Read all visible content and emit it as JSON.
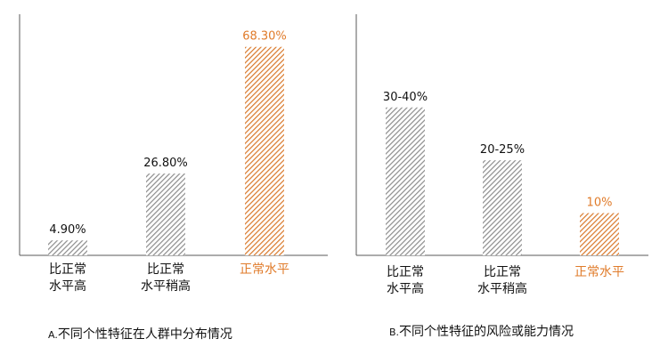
{
  "colors": {
    "gray": "#8c8c8c",
    "orange": "#d9782a",
    "text": "#111111",
    "highlight_text": "#e07b2a"
  },
  "chart_data": [
    {
      "type": "bar",
      "categories": [
        [
          "比正常",
          "水平高"
        ],
        [
          "比正常",
          "水平稍高"
        ],
        [
          "正常水平"
        ]
      ],
      "values": [
        4.9,
        26.8,
        68.3
      ],
      "value_labels": [
        "4.90%",
        "26.80%",
        "68.30%"
      ],
      "highlight_index": 2,
      "ylim": [
        0,
        72
      ],
      "caption_prefix": "A.",
      "caption": "不同个性特征在人群中分布情况"
    },
    {
      "type": "bar",
      "categories": [
        [
          "比正常",
          "水平高"
        ],
        [
          "比正常",
          "水平稍高"
        ],
        [
          "正常水平"
        ]
      ],
      "values": [
        35,
        22.5,
        10
      ],
      "value_labels": [
        "30-40%",
        "20-25%",
        "10%"
      ],
      "highlight_index": 2,
      "ylim": [
        0,
        52
      ],
      "caption_prefix": "B.",
      "caption": "不同个性特征的风险或能力情况"
    }
  ]
}
